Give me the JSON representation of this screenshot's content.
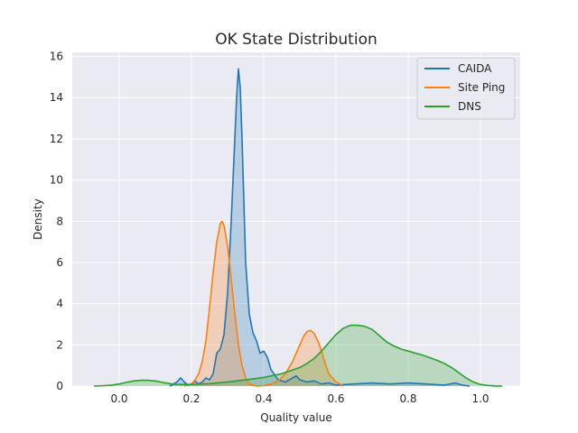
{
  "chart_data": {
    "type": "area",
    "title": "OK State Distribution",
    "xlabel": "Quality value",
    "ylabel": "Density",
    "xlim": [
      -0.13,
      1.11
    ],
    "ylim": [
      0,
      16.2
    ],
    "xticks": [
      "0.0",
      "0.2",
      "0.4",
      "0.6",
      "0.8",
      "1.0"
    ],
    "yticks": [
      "0",
      "2",
      "4",
      "6",
      "8",
      "10",
      "12",
      "14",
      "16"
    ],
    "grid": true,
    "legend": "top-right",
    "series": [
      {
        "name": "CAIDA",
        "color": "#1f77b4",
        "x": [
          0.14,
          0.16,
          0.17,
          0.18,
          0.19,
          0.2,
          0.21,
          0.22,
          0.23,
          0.24,
          0.25,
          0.26,
          0.27,
          0.28,
          0.29,
          0.3,
          0.31,
          0.32,
          0.325,
          0.33,
          0.335,
          0.34,
          0.345,
          0.35,
          0.36,
          0.37,
          0.38,
          0.39,
          0.4,
          0.41,
          0.42,
          0.44,
          0.46,
          0.48,
          0.49,
          0.5,
          0.52,
          0.54,
          0.56,
          0.58,
          0.6,
          0.65,
          0.7,
          0.75,
          0.8,
          0.85,
          0.9,
          0.93,
          0.95,
          0.97
        ],
        "values": [
          0,
          0.2,
          0.4,
          0.2,
          0.05,
          0.1,
          0.25,
          0.1,
          0.2,
          0.4,
          0.3,
          0.6,
          1.6,
          1.8,
          2.5,
          4.5,
          8.0,
          12.0,
          14.0,
          15.4,
          14.5,
          12.0,
          9.0,
          6.0,
          3.5,
          2.6,
          2.2,
          1.6,
          1.7,
          1.4,
          0.8,
          0.3,
          0.2,
          0.4,
          0.5,
          0.3,
          0.2,
          0.25,
          0.1,
          0.15,
          0.05,
          0.1,
          0.15,
          0.1,
          0.15,
          0.1,
          0.05,
          0.15,
          0.05,
          0
        ]
      },
      {
        "name": "Site Ping",
        "color": "#ff7f0e",
        "x": [
          0.18,
          0.2,
          0.21,
          0.22,
          0.23,
          0.24,
          0.25,
          0.26,
          0.27,
          0.28,
          0.285,
          0.29,
          0.3,
          0.31,
          0.32,
          0.33,
          0.34,
          0.35,
          0.36,
          0.38,
          0.4,
          0.42,
          0.44,
          0.46,
          0.48,
          0.5,
          0.51,
          0.52,
          0.53,
          0.54,
          0.55,
          0.56,
          0.57,
          0.58,
          0.6,
          0.62
        ],
        "values": [
          0,
          0.1,
          0.3,
          0.6,
          1.2,
          2.2,
          3.8,
          5.5,
          7.0,
          7.9,
          8.0,
          7.8,
          6.8,
          5.2,
          3.5,
          2.0,
          1.0,
          0.4,
          0.1,
          0,
          0.02,
          0.1,
          0.25,
          0.6,
          1.2,
          2.0,
          2.4,
          2.65,
          2.7,
          2.55,
          2.2,
          1.7,
          1.1,
          0.6,
          0.2,
          0
        ]
      },
      {
        "name": "DNS",
        "color": "#2ca02c",
        "x": [
          -0.07,
          -0.04,
          -0.02,
          0.0,
          0.02,
          0.04,
          0.06,
          0.08,
          0.1,
          0.12,
          0.14,
          0.16,
          0.2,
          0.25,
          0.3,
          0.35,
          0.4,
          0.45,
          0.5,
          0.52,
          0.54,
          0.56,
          0.58,
          0.6,
          0.62,
          0.64,
          0.66,
          0.68,
          0.7,
          0.72,
          0.74,
          0.76,
          0.78,
          0.8,
          0.82,
          0.84,
          0.86,
          0.88,
          0.9,
          0.92,
          0.94,
          0.96,
          0.98,
          1.0,
          1.02,
          1.04,
          1.06
        ],
        "values": [
          0,
          0.02,
          0.05,
          0.1,
          0.18,
          0.25,
          0.28,
          0.28,
          0.25,
          0.18,
          0.12,
          0.08,
          0.08,
          0.12,
          0.2,
          0.3,
          0.42,
          0.6,
          0.9,
          1.1,
          1.35,
          1.7,
          2.1,
          2.5,
          2.8,
          2.95,
          2.95,
          2.9,
          2.75,
          2.45,
          2.15,
          1.95,
          1.8,
          1.7,
          1.6,
          1.5,
          1.38,
          1.25,
          1.1,
          0.9,
          0.65,
          0.4,
          0.2,
          0.08,
          0.03,
          0.01,
          0
        ]
      }
    ]
  }
}
